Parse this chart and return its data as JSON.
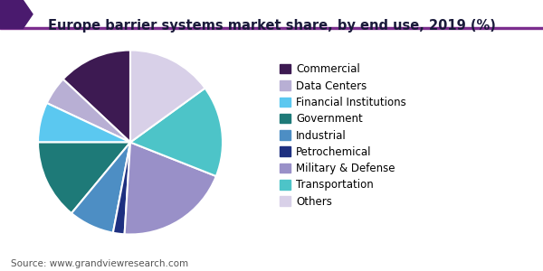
{
  "title": "Europe barrier systems market share, by end use, 2019 (%)",
  "source": "Source: www.grandviewresearch.com",
  "labels": [
    "Commercial",
    "Data Centers",
    "Financial Institutions",
    "Government",
    "Industrial",
    "Petrochemical",
    "Military & Defense",
    "Transportation",
    "Others"
  ],
  "sizes": [
    13,
    5,
    7,
    14,
    8,
    2,
    20,
    16,
    15
  ],
  "colors": [
    "#3d1a52",
    "#b8afd4",
    "#5bc8f0",
    "#1e7a78",
    "#4d8ec4",
    "#1e3080",
    "#9990c8",
    "#4dc4c8",
    "#d8d0e8"
  ],
  "startangle": 90,
  "background_color": "#ffffff",
  "title_fontsize": 10.5,
  "legend_fontsize": 8.5,
  "source_fontsize": 7.5,
  "header_line_color": "#7b2d8e",
  "header_triangle_color": "#4a1a6e"
}
